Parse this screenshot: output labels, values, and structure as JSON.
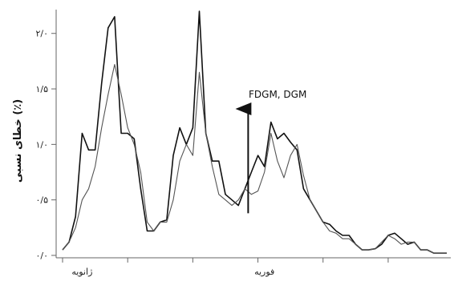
{
  "chart_data": {
    "type": "line",
    "title": "",
    "xlabel": "",
    "ylabel": "خطای نسبی (٪)",
    "ylim": [
      0,
      2.2
    ],
    "ytick_values": [
      0,
      0.5,
      1.0,
      1.5,
      2.0
    ],
    "ytick_labels": [
      "۰/۰",
      "۰/۵",
      "۱/۰",
      "۱/۵",
      "۲/۰"
    ],
    "xlim": [
      0,
      59
    ],
    "xtick_positions": [
      0,
      10,
      20,
      30,
      40,
      50
    ],
    "xtick_labels": [
      {
        "at": 3,
        "text": "ژانویه"
      },
      {
        "at": 31,
        "text": "فوریه"
      }
    ],
    "grid": false,
    "legend": "none",
    "annotation": {
      "text": "FDGM, DGM",
      "arrow_x": 28.5,
      "arrow_from_y": 0.38,
      "arrow_to_y": 1.32
    },
    "series": [
      {
        "color": "#111111",
        "x": [
          0,
          1,
          2,
          3,
          4,
          5,
          6,
          7,
          8,
          9,
          10,
          11,
          12,
          13,
          14,
          15,
          16,
          17,
          18,
          19,
          20,
          21,
          22,
          23,
          24,
          25,
          26,
          27,
          28,
          29,
          30,
          31,
          32,
          33,
          34,
          35,
          36,
          37,
          38,
          39,
          40,
          41,
          42,
          43,
          44,
          45,
          46,
          47,
          48,
          49,
          50,
          51,
          52,
          53,
          54,
          55,
          56,
          57,
          58,
          59
        ],
        "values": [
          0.05,
          0.12,
          0.35,
          1.1,
          0.95,
          0.95,
          1.55,
          2.05,
          2.15,
          1.1,
          1.1,
          1.05,
          0.6,
          0.22,
          0.22,
          0.3,
          0.32,
          0.9,
          1.15,
          1.0,
          1.15,
          2.2,
          1.1,
          0.85,
          0.85,
          0.55,
          0.5,
          0.45,
          0.6,
          0.75,
          0.9,
          0.8,
          1.2,
          1.05,
          1.1,
          1.02,
          0.95,
          0.6,
          0.5,
          0.4,
          0.3,
          0.28,
          0.22,
          0.18,
          0.18,
          0.1,
          0.05,
          0.05,
          0.06,
          0.1,
          0.18,
          0.2,
          0.15,
          0.1,
          0.12,
          0.05,
          0.05,
          0.02,
          0.02,
          0.02
        ]
      },
      {
        "color": "#555555",
        "x": [
          0,
          1,
          2,
          3,
          4,
          5,
          6,
          7,
          8,
          9,
          10,
          11,
          12,
          13,
          14,
          15,
          16,
          17,
          18,
          19,
          20,
          21,
          22,
          23,
          24,
          25,
          26,
          27,
          28,
          29,
          30,
          31,
          32,
          33,
          34,
          35,
          36,
          37,
          38,
          39,
          40,
          41,
          42,
          43,
          44,
          45,
          46,
          47,
          48,
          49,
          50,
          51,
          52,
          53,
          54,
          55,
          56,
          57,
          58,
          59
        ],
        "values": [
          0.05,
          0.12,
          0.25,
          0.5,
          0.6,
          0.8,
          1.15,
          1.45,
          1.72,
          1.45,
          1.15,
          1.0,
          0.75,
          0.3,
          0.22,
          0.3,
          0.3,
          0.5,
          0.85,
          1.0,
          0.9,
          1.65,
          1.1,
          0.8,
          0.55,
          0.5,
          0.45,
          0.5,
          0.6,
          0.55,
          0.58,
          0.75,
          1.1,
          0.85,
          0.7,
          0.9,
          1.0,
          0.72,
          0.5,
          0.4,
          0.3,
          0.22,
          0.2,
          0.15,
          0.15,
          0.1,
          0.05,
          0.05,
          0.06,
          0.12,
          0.18,
          0.15,
          0.1,
          0.12,
          0.12,
          0.05,
          0.05,
          0.02,
          0.02,
          0.02
        ]
      }
    ]
  }
}
